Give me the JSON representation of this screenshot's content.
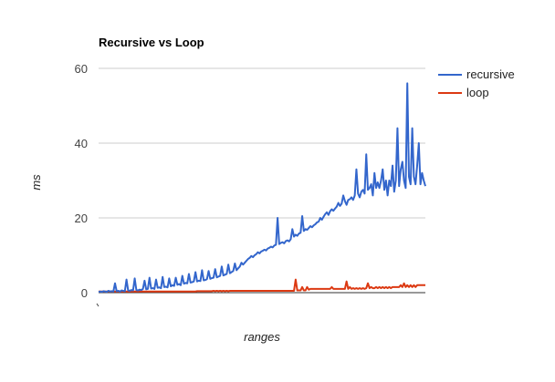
{
  "chart_data": {
    "type": "line",
    "title": "Recursive vs Loop",
    "xlabel": "ranges",
    "ylabel": "ms",
    "ylim": [
      0,
      60
    ],
    "yticks": [
      0,
      20,
      40,
      60
    ],
    "grid": true,
    "legend_position": "right",
    "x_points": 200,
    "series": [
      {
        "name": "recursive",
        "color": "#3366cc",
        "values": [
          0.2,
          0.3,
          0.2,
          0.4,
          0.3,
          0.2,
          0.5,
          0.3,
          0.4,
          0.3,
          2.5,
          0.4,
          0.5,
          0.3,
          0.6,
          0.5,
          0.4,
          3.5,
          0.6,
          0.5,
          0.7,
          0.6,
          3.8,
          0.7,
          0.6,
          0.8,
          0.7,
          1.0,
          3.2,
          0.9,
          1.0,
          4.0,
          1.1,
          1.2,
          1.0,
          3.5,
          1.3,
          1.4,
          1.2,
          4.2,
          1.5,
          1.6,
          1.4,
          3.8,
          1.7,
          2.0,
          1.8,
          4.0,
          2.1,
          2.3,
          2.0,
          4.5,
          2.4,
          2.6,
          2.5,
          5.0,
          2.7,
          2.8,
          3.0,
          5.5,
          3.0,
          3.2,
          3.1,
          6.0,
          3.3,
          3.4,
          3.6,
          5.8,
          3.7,
          3.9,
          4.0,
          6.3,
          4.1,
          4.3,
          4.5,
          7.0,
          4.6,
          4.8,
          5.0,
          7.5,
          5.2,
          5.5,
          5.8,
          7.8,
          6.0,
          6.5,
          7.0,
          8.0,
          7.5,
          8.0,
          8.5,
          9.0,
          9.3,
          9.8,
          9.5,
          10.0,
          10.3,
          10.8,
          10.5,
          11.0,
          11.2,
          11.5,
          11.3,
          11.8,
          12.0,
          12.3,
          12.1,
          12.6,
          12.8,
          20.0,
          13.0,
          13.3,
          13.5,
          13.2,
          13.8,
          14.0,
          13.7,
          14.3,
          17.0,
          15.0,
          15.5,
          15.2,
          15.8,
          16.0,
          20.5,
          16.5,
          17.0,
          16.8,
          17.3,
          17.8,
          17.5,
          18.0,
          18.3,
          18.8,
          19.0,
          20.0,
          19.5,
          20.3,
          21.0,
          21.5,
          20.8,
          21.8,
          22.3,
          21.9,
          22.5,
          23.0,
          24.0,
          23.2,
          23.8,
          26.0,
          24.5,
          23.5,
          24.8,
          25.0,
          25.5,
          24.8,
          26.0,
          33.0,
          26.5,
          25.5,
          27.0,
          27.5,
          26.5,
          37.0,
          27.5,
          28.0,
          29.0,
          26.0,
          32.0,
          28.0,
          29.5,
          28.0,
          30.0,
          33.0,
          27.5,
          30.0,
          26.0,
          30.0,
          28.5,
          34.0,
          27.0,
          30.0,
          44.0,
          28.5,
          33.0,
          35.0,
          30.0,
          28.0,
          56.0,
          31.0,
          29.0,
          44.0,
          31.0,
          29.0,
          34.0,
          40.0,
          29.0,
          32.0,
          30.0,
          28.5
        ]
      },
      {
        "name": "loop",
        "color": "#dc3912",
        "values": [
          0.3,
          0.3,
          0.3,
          0.3,
          0.3,
          0.3,
          0.3,
          0.3,
          0.3,
          0.3,
          0.3,
          0.3,
          0.3,
          0.3,
          0.3,
          0.3,
          0.3,
          0.3,
          0.3,
          0.3,
          0.3,
          0.3,
          0.3,
          0.3,
          0.3,
          0.3,
          0.3,
          0.3,
          0.3,
          0.3,
          0.3,
          0.3,
          0.3,
          0.3,
          0.3,
          0.3,
          0.3,
          0.3,
          0.3,
          0.3,
          0.3,
          0.3,
          0.3,
          0.3,
          0.3,
          0.3,
          0.3,
          0.3,
          0.3,
          0.3,
          0.3,
          0.3,
          0.3,
          0.3,
          0.3,
          0.3,
          0.3,
          0.3,
          0.3,
          0.3,
          0.4,
          0.4,
          0.4,
          0.4,
          0.4,
          0.4,
          0.4,
          0.4,
          0.4,
          0.4,
          0.5,
          0.4,
          0.5,
          0.4,
          0.5,
          0.4,
          0.5,
          0.4,
          0.5,
          0.4,
          0.5,
          0.5,
          0.5,
          0.5,
          0.5,
          0.5,
          0.5,
          0.5,
          0.5,
          0.5,
          0.5,
          0.5,
          0.5,
          0.5,
          0.5,
          0.5,
          0.5,
          0.5,
          0.5,
          0.5,
          0.5,
          0.5,
          0.5,
          0.5,
          0.5,
          0.5,
          0.5,
          0.5,
          0.5,
          0.5,
          0.5,
          0.5,
          0.5,
          0.5,
          0.5,
          0.5,
          0.5,
          0.5,
          0.5,
          0.5,
          3.5,
          0.6,
          0.6,
          0.6,
          1.5,
          0.6,
          0.6,
          1.5,
          0.8,
          1.0,
          1.0,
          1.0,
          1.0,
          1.0,
          1.0,
          1.0,
          1.0,
          1.0,
          1.0,
          1.0,
          1.0,
          1.0,
          1.5,
          1.0,
          1.0,
          1.0,
          1.0,
          1.0,
          1.0,
          1.0,
          1.0,
          3.0,
          1.0,
          1.5,
          1.0,
          1.2,
          1.0,
          1.2,
          1.0,
          1.2,
          1.0,
          1.2,
          1.0,
          1.2,
          2.5,
          1.2,
          1.5,
          1.2,
          1.2,
          1.5,
          1.2,
          1.5,
          1.2,
          1.5,
          1.2,
          1.5,
          1.2,
          1.5,
          1.2,
          1.5,
          1.5,
          1.5,
          1.5,
          1.5,
          2.0,
          1.5,
          2.5,
          1.5,
          2.0,
          1.5,
          2.0,
          1.5,
          2.0,
          1.5,
          2.0,
          2.0,
          2.0,
          2.0,
          2.0,
          2.0
        ]
      }
    ]
  }
}
